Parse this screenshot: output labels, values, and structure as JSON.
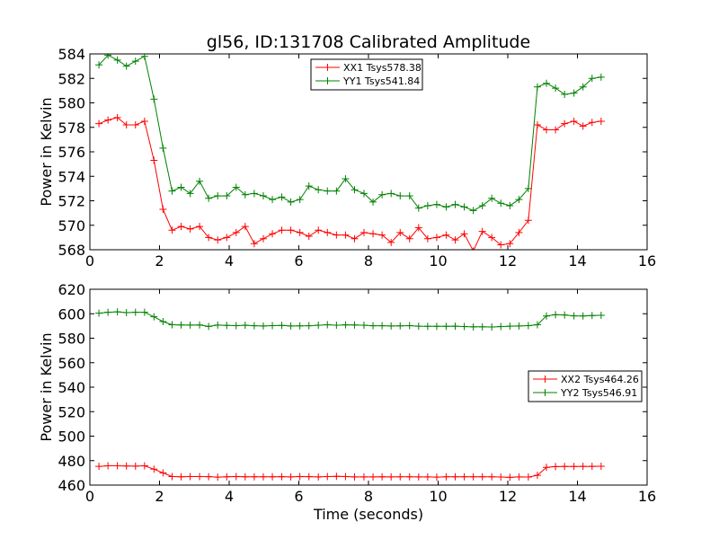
{
  "title": "gl56, ID:131708 Calibrated Amplitude",
  "colors": {
    "red": "#ff0000",
    "green": "#008000"
  },
  "chart_data": [
    {
      "type": "line",
      "ylabel": "Power in Kelvin",
      "xlabel": "",
      "xlim": [
        0,
        16
      ],
      "ylim": [
        568,
        584
      ],
      "xticks": [
        0,
        2,
        4,
        6,
        8,
        10,
        12,
        14,
        16
      ],
      "yticks": [
        568,
        570,
        572,
        574,
        576,
        578,
        580,
        582,
        584
      ],
      "legend_position": "top-center",
      "x": [
        0.26,
        0.52,
        0.79,
        1.05,
        1.31,
        1.57,
        1.84,
        2.1,
        2.36,
        2.62,
        2.88,
        3.15,
        3.41,
        3.67,
        3.93,
        4.2,
        4.46,
        4.72,
        4.98,
        5.24,
        5.51,
        5.77,
        6.03,
        6.29,
        6.56,
        6.82,
        7.08,
        7.34,
        7.6,
        7.87,
        8.13,
        8.39,
        8.65,
        8.91,
        9.18,
        9.44,
        9.7,
        9.96,
        10.23,
        10.49,
        10.75,
        11.01,
        11.27,
        11.54,
        11.8,
        12.06,
        12.32,
        12.59,
        12.85,
        13.11,
        13.37,
        13.63,
        13.9,
        14.16,
        14.42,
        14.68
      ],
      "series": [
        {
          "name": "XX1 Tsys578.38",
          "color": "#ff0000",
          "values": [
            578.3,
            578.6,
            578.8,
            578.2,
            578.2,
            578.5,
            575.3,
            571.3,
            569.6,
            569.9,
            569.7,
            569.9,
            569.0,
            568.8,
            569.0,
            569.4,
            569.9,
            568.5,
            568.9,
            569.3,
            569.6,
            569.6,
            569.4,
            569.1,
            569.6,
            569.4,
            569.2,
            569.2,
            568.9,
            569.4,
            569.3,
            569.2,
            568.6,
            569.4,
            568.9,
            569.8,
            568.9,
            569.0,
            569.2,
            568.8,
            569.3,
            567.9,
            569.5,
            569.0,
            568.4,
            568.5,
            569.4,
            570.4,
            578.2,
            577.8,
            577.8,
            578.3,
            578.5,
            578.1,
            578.4,
            578.5
          ]
        },
        {
          "name": "YY1 Tsys541.84",
          "color": "#008000",
          "values": [
            583.1,
            583.9,
            583.5,
            583.0,
            583.4,
            583.8,
            580.3,
            576.3,
            572.8,
            573.1,
            572.6,
            573.6,
            572.2,
            572.4,
            572.4,
            573.1,
            572.5,
            572.6,
            572.4,
            572.1,
            572.3,
            571.9,
            572.1,
            573.2,
            572.9,
            572.8,
            572.8,
            573.8,
            572.9,
            572.6,
            571.9,
            572.5,
            572.6,
            572.4,
            572.4,
            571.4,
            571.6,
            571.7,
            571.5,
            571.7,
            571.5,
            571.2,
            571.6,
            572.2,
            571.8,
            571.6,
            572.1,
            573.0,
            581.3,
            581.6,
            581.2,
            580.7,
            580.8,
            581.3,
            582.0,
            582.1
          ]
        }
      ]
    },
    {
      "type": "line",
      "ylabel": "Power in Kelvin",
      "xlabel": "Time (seconds)",
      "xlim": [
        0,
        16
      ],
      "ylim": [
        460,
        620
      ],
      "xticks": [
        0,
        2,
        4,
        6,
        8,
        10,
        12,
        14,
        16
      ],
      "yticks": [
        460,
        480,
        500,
        520,
        540,
        560,
        580,
        600,
        620
      ],
      "legend_position": "center-right",
      "x": [
        0.26,
        0.52,
        0.79,
        1.05,
        1.31,
        1.57,
        1.84,
        2.1,
        2.36,
        2.62,
        2.88,
        3.15,
        3.41,
        3.67,
        3.93,
        4.2,
        4.46,
        4.72,
        4.98,
        5.24,
        5.51,
        5.77,
        6.03,
        6.29,
        6.56,
        6.82,
        7.08,
        7.34,
        7.6,
        7.87,
        8.13,
        8.39,
        8.65,
        8.91,
        9.18,
        9.44,
        9.7,
        9.96,
        10.23,
        10.49,
        10.75,
        11.01,
        11.27,
        11.54,
        11.8,
        12.06,
        12.32,
        12.59,
        12.85,
        13.11,
        13.37,
        13.63,
        13.9,
        14.16,
        14.42,
        14.68
      ],
      "series": [
        {
          "name": "XX2 Tsys464.26",
          "color": "#ff0000",
          "values": [
            475.3,
            475.8,
            475.8,
            475.6,
            475.5,
            475.8,
            473.0,
            470.0,
            467.0,
            466.8,
            467.0,
            467.0,
            466.9,
            466.5,
            466.8,
            467.0,
            466.8,
            466.8,
            466.8,
            466.8,
            466.9,
            466.7,
            467.0,
            466.9,
            466.7,
            467.0,
            467.2,
            467.0,
            466.7,
            466.7,
            466.7,
            466.8,
            466.7,
            466.8,
            466.8,
            466.7,
            466.7,
            466.5,
            466.8,
            466.8,
            466.8,
            466.8,
            466.8,
            466.8,
            466.6,
            466.3,
            466.7,
            466.6,
            468.0,
            474.5,
            475.1,
            475.2,
            475.2,
            475.3,
            475.3,
            475.4
          ]
        },
        {
          "name": "YY2 Tsys546.91",
          "color": "#008000",
          "values": [
            600.5,
            601.2,
            601.6,
            600.9,
            601.2,
            601.2,
            597.5,
            593.6,
            591.0,
            590.8,
            590.7,
            590.8,
            589.6,
            590.7,
            590.5,
            590.3,
            590.6,
            590.2,
            590.0,
            590.3,
            590.5,
            590.0,
            590.1,
            590.2,
            590.6,
            591.0,
            590.6,
            590.9,
            590.8,
            590.6,
            590.2,
            590.2,
            590.0,
            590.1,
            590.3,
            589.8,
            589.7,
            589.7,
            589.7,
            589.8,
            589.5,
            589.3,
            589.3,
            589.2,
            589.5,
            589.8,
            590.0,
            590.3,
            591.0,
            598.2,
            599.2,
            599.0,
            598.3,
            598.2,
            598.5,
            598.7
          ]
        }
      ]
    }
  ]
}
